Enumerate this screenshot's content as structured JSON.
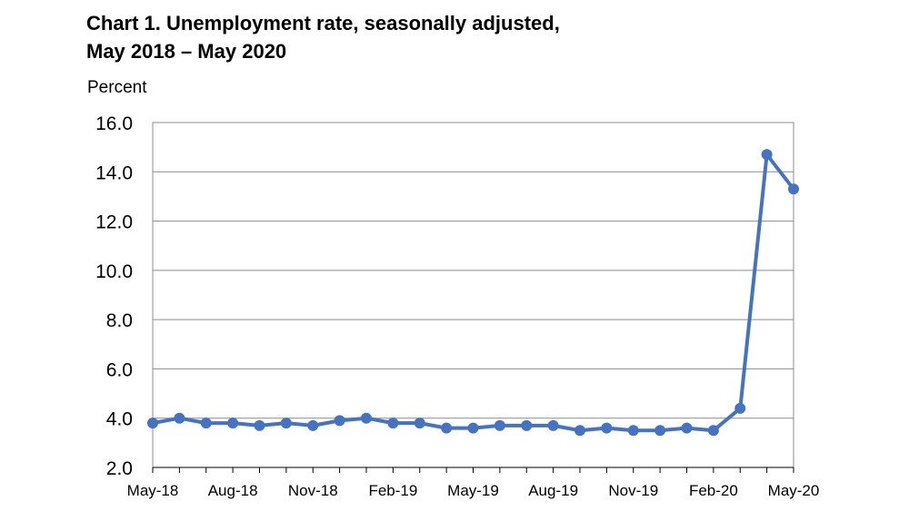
{
  "title_line1": "Chart 1. Unemployment rate, seasonally adjusted,",
  "title_line2": "May 2018 – May 2020",
  "chart_data": {
    "type": "line",
    "title": "Chart 1. Unemployment rate, seasonally adjusted, May 2018 – May 2020",
    "ylabel": "Percent",
    "xlabel": "",
    "ylim": [
      2.0,
      16.0
    ],
    "yticks": [
      "2.0",
      "4.0",
      "6.0",
      "8.0",
      "10.0",
      "12.0",
      "14.0",
      "16.0"
    ],
    "xtick_labels": [
      "May-18",
      "Aug-18",
      "Nov-18",
      "Feb-19",
      "May-19",
      "Aug-19",
      "Nov-19",
      "Feb-20",
      "May-20"
    ],
    "grid": true,
    "legend": "none",
    "color": "#4472C4",
    "x": [
      "May-18",
      "Jun-18",
      "Jul-18",
      "Aug-18",
      "Sep-18",
      "Oct-18",
      "Nov-18",
      "Dec-18",
      "Jan-19",
      "Feb-19",
      "Mar-19",
      "Apr-19",
      "May-19",
      "Jun-19",
      "Jul-19",
      "Aug-19",
      "Sep-19",
      "Oct-19",
      "Nov-19",
      "Dec-19",
      "Jan-20",
      "Feb-20",
      "Mar-20",
      "Apr-20",
      "May-20"
    ],
    "values": [
      3.8,
      4.0,
      3.8,
      3.8,
      3.7,
      3.8,
      3.7,
      3.9,
      4.0,
      3.8,
      3.8,
      3.6,
      3.6,
      3.7,
      3.7,
      3.7,
      3.5,
      3.6,
      3.5,
      3.5,
      3.6,
      3.5,
      4.4,
      14.7,
      13.3
    ]
  }
}
